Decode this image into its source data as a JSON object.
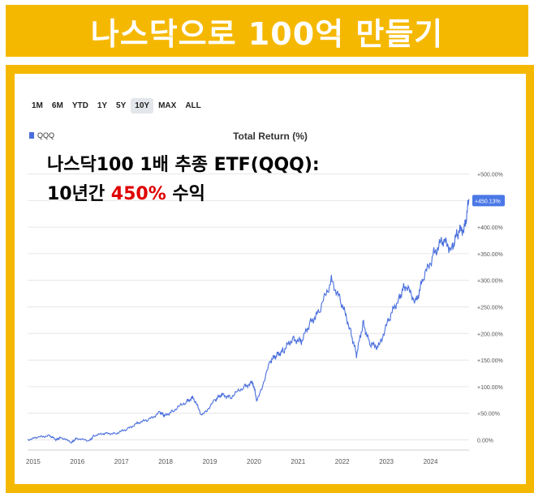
{
  "banner": {
    "title": "나스닥으로 100억 만들기"
  },
  "toolbar": {
    "ranges": [
      "1M",
      "6M",
      "YTD",
      "1Y",
      "5Y",
      "10Y",
      "MAX",
      "ALL"
    ],
    "active": "10Y"
  },
  "legend": {
    "label": "QQQ"
  },
  "overlay": {
    "line1": "나스닥100 1배 추종 ETF(QQQ):",
    "line2_prefix": "10년간 ",
    "line2_highlight": "450%",
    "line2_suffix": " 수익"
  },
  "colors": {
    "banner": "#f5b800",
    "series": "#4a6fdc",
    "highlight": "#e00000",
    "badge": "#4a78e6"
  },
  "chart_data": {
    "type": "line",
    "title": "Total Return (%)",
    "ylabel": "",
    "xlabel": "",
    "y_tick_labels": [
      "+500.00%",
      "+450.00%",
      "+400.00%",
      "+350.00%",
      "+300.00%",
      "+250.00%",
      "+200.00%",
      "+150.00%",
      "+100.00%",
      "+50.00%",
      "0.00%"
    ],
    "y_ticks": [
      500,
      450,
      400,
      350,
      300,
      250,
      200,
      150,
      100,
      50,
      0
    ],
    "x_tick_labels": [
      "2015",
      "2016",
      "2017",
      "2018",
      "2019",
      "2020",
      "2021",
      "2022",
      "2023",
      "2024"
    ],
    "x_ticks": [
      2015,
      2016,
      2017,
      2018,
      2019,
      2020,
      2021,
      2022,
      2023,
      2024
    ],
    "xlim": [
      2015.0,
      2025.0
    ],
    "ylim": [
      -10,
      510
    ],
    "last_value_label": "+450.13%",
    "series": [
      {
        "name": "QQQ",
        "x": [
          2015.0,
          2015.25,
          2015.5,
          2015.65,
          2015.75,
          2016.0,
          2016.1,
          2016.4,
          2016.5,
          2016.75,
          2017.0,
          2017.25,
          2017.5,
          2017.75,
          2018.0,
          2018.1,
          2018.3,
          2018.6,
          2018.75,
          2018.95,
          2019.25,
          2019.4,
          2019.6,
          2019.9,
          2020.1,
          2020.2,
          2020.5,
          2020.65,
          2020.8,
          2021.0,
          2021.2,
          2021.4,
          2021.6,
          2021.88,
          2022.1,
          2022.3,
          2022.45,
          2022.6,
          2022.75,
          2022.95,
          2023.2,
          2023.4,
          2023.55,
          2023.8,
          2023.95,
          2024.2,
          2024.4,
          2024.6,
          2024.75,
          2024.9,
          2025.0
        ],
        "values": [
          0,
          5,
          8,
          0,
          5,
          -5,
          3,
          -2,
          8,
          12,
          12,
          20,
          32,
          38,
          52,
          45,
          55,
          72,
          80,
          45,
          75,
          85,
          80,
          100,
          108,
          72,
          148,
          160,
          168,
          190,
          185,
          220,
          240,
          300,
          260,
          210,
          160,
          220,
          180,
          175,
          230,
          265,
          290,
          260,
          300,
          350,
          375,
          360,
          390,
          400,
          450
        ]
      }
    ]
  }
}
